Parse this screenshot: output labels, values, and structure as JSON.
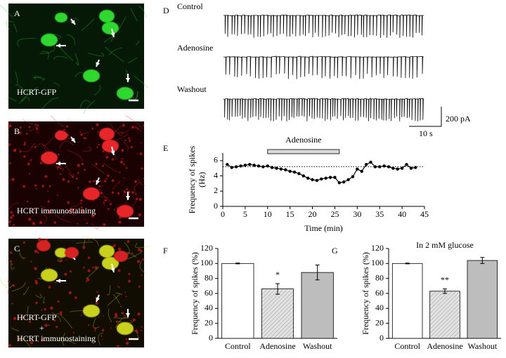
{
  "panels": {
    "A": {
      "label": "A",
      "caption": "HCRT-GFP"
    },
    "B": {
      "label": "B",
      "caption": "HCRT immunostaining"
    },
    "C": {
      "label": "C",
      "caption": [
        "HCRT-GFP",
        "+",
        "HCRT immunostaining"
      ]
    },
    "D": {
      "label": "D",
      "traces": [
        "Control",
        "Adenosine",
        "Washout"
      ],
      "scale_y": "200 pA",
      "scale_x": "10 s"
    },
    "E": {
      "label": "E"
    },
    "F": {
      "label": "F"
    },
    "G": {
      "label": "G"
    }
  },
  "chart_data": [
    {
      "type": "line",
      "x": [
        1,
        2,
        3,
        4,
        5,
        6,
        7,
        8,
        9,
        10,
        11,
        12,
        13,
        14,
        15,
        16,
        17,
        18,
        19,
        20,
        21,
        22,
        23,
        24,
        25,
        26,
        27,
        28,
        29,
        30,
        31,
        32,
        33,
        34,
        35,
        36,
        37,
        38,
        39,
        40,
        41,
        42,
        43
      ],
      "values": [
        5.5,
        5.1,
        5.2,
        5.3,
        5.4,
        5.5,
        5.4,
        5.3,
        5.2,
        5.3,
        5.1,
        5.0,
        4.9,
        4.8,
        4.6,
        4.5,
        4.3,
        4.0,
        3.7,
        3.5,
        3.4,
        3.6,
        3.7,
        3.8,
        3.8,
        3.1,
        3.2,
        3.5,
        3.9,
        4.9,
        4.6,
        5.5,
        5.8,
        5.2,
        5.2,
        5.3,
        5.2,
        5.0,
        4.9,
        5.0,
        5.5,
        5.0,
        5.1
      ],
      "color": "#000000",
      "xlabel": "Time (min)",
      "ylabel": [
        "Frequency of spikes",
        "(Hz)"
      ],
      "xlim": [
        0,
        45
      ],
      "xticks": [
        0,
        5,
        10,
        15,
        20,
        25,
        30,
        35,
        40,
        45
      ],
      "ylim": [
        0,
        7
      ],
      "yticks": [
        0,
        2,
        4,
        6
      ],
      "reference_line": 5.2,
      "annotation": {
        "label": "Adenosine",
        "start": 10,
        "end": 26
      }
    },
    {
      "type": "bar",
      "categories": [
        "Control",
        "Adenosine",
        "Washout"
      ],
      "values": [
        100,
        66,
        88
      ],
      "errors": [
        0.5,
        7,
        10
      ],
      "colors": [
        "#ffffff",
        "#e2e2e2",
        "#bdbdbd"
      ],
      "hatch": [
        false,
        true,
        false
      ],
      "ylabel": "Frequency of spikes (%)",
      "ylim": [
        0,
        120
      ],
      "yticks": [
        0,
        20,
        40,
        60,
        80,
        100,
        120
      ],
      "significance": {
        "category": "Adenosine",
        "label": "*"
      }
    },
    {
      "type": "bar",
      "title": "In 2 mM glucose",
      "categories": [
        "Control",
        "Adenosine",
        "Washout"
      ],
      "values": [
        100,
        63,
        104
      ],
      "errors": [
        0.5,
        3,
        4
      ],
      "colors": [
        "#ffffff",
        "#e2e2e2",
        "#bdbdbd"
      ],
      "hatch": [
        false,
        true,
        false
      ],
      "ylabel": "Frequency of spikes (%)",
      "ylim": [
        0,
        120
      ],
      "yticks": [
        0,
        20,
        40,
        60,
        80,
        100,
        120
      ],
      "significance": {
        "category": "Adenosine",
        "label": "**"
      }
    }
  ]
}
